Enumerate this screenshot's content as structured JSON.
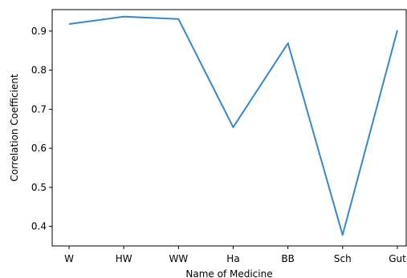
{
  "chart_data": {
    "type": "line",
    "title": "",
    "xlabel": "Name of Medicine",
    "ylabel": "Correlation Coefficient",
    "categories": [
      "W",
      "HW",
      "WW",
      "Ha",
      "BB",
      "Sch",
      "Gut"
    ],
    "series": [
      {
        "values": [
          0.918,
          0.937,
          0.931,
          0.654,
          0.869,
          0.378,
          0.902
        ]
      }
    ],
    "yticks": [
      0.4,
      0.5,
      0.6,
      0.7,
      0.8,
      0.9
    ],
    "ytick_labels": [
      "0.4",
      "0.5",
      "0.6",
      "0.7",
      "0.8",
      "0.9"
    ],
    "ylim": [
      0.35,
      0.955
    ],
    "grid": false,
    "line_color": "#3a87c2"
  }
}
